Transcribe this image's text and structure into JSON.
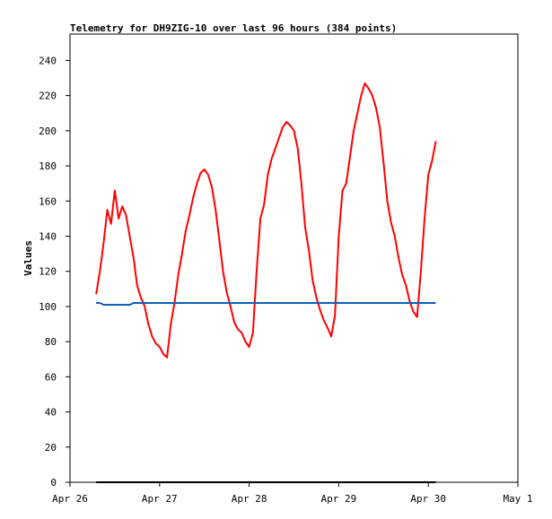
{
  "chart_data": {
    "type": "line",
    "title": "Telemetry for DH9ZIG-10 over last 96 hours (384 points)",
    "xlabel": "",
    "ylabel": "Values",
    "xlim": [
      "Apr 26",
      "May 1"
    ],
    "ylim": [
      0,
      255
    ],
    "x_ticks": [
      "Apr 26",
      "Apr 27",
      "Apr 28",
      "Apr 29",
      "Apr 30",
      "May 1"
    ],
    "y_ticks": [
      0,
      20,
      40,
      60,
      80,
      100,
      120,
      140,
      160,
      180,
      200,
      220,
      240
    ],
    "grid": false,
    "legend": "none",
    "series": [
      {
        "color": "#ff0000",
        "points": [
          [
            "Apr 26 07:00",
            107
          ],
          [
            "Apr 26 08:00",
            120
          ],
          [
            "Apr 26 09:00",
            136
          ],
          [
            "Apr 26 10:00",
            155
          ],
          [
            "Apr 26 11:00",
            147
          ],
          [
            "Apr 26 12:00",
            166
          ],
          [
            "Apr 26 13:00",
            150
          ],
          [
            "Apr 26 14:00",
            157
          ],
          [
            "Apr 26 15:00",
            152
          ],
          [
            "Apr 26 16:00",
            140
          ],
          [
            "Apr 26 17:00",
            128
          ],
          [
            "Apr 26 18:00",
            112
          ],
          [
            "Apr 26 19:00",
            105
          ],
          [
            "Apr 26 20:00",
            100
          ],
          [
            "Apr 26 21:00",
            90
          ],
          [
            "Apr 26 22:00",
            83
          ],
          [
            "Apr 26 23:00",
            79
          ],
          [
            "Apr 27 00:00",
            77
          ],
          [
            "Apr 27 01:00",
            73
          ],
          [
            "Apr 27 02:00",
            71
          ],
          [
            "Apr 27 03:00",
            90
          ],
          [
            "Apr 27 04:00",
            102
          ],
          [
            "Apr 27 05:00",
            118
          ],
          [
            "Apr 27 06:00",
            130
          ],
          [
            "Apr 27 07:00",
            143
          ],
          [
            "Apr 27 08:00",
            152
          ],
          [
            "Apr 27 09:00",
            162
          ],
          [
            "Apr 27 10:00",
            170
          ],
          [
            "Apr 27 11:00",
            176
          ],
          [
            "Apr 27 12:00",
            178
          ],
          [
            "Apr 27 13:00",
            175
          ],
          [
            "Apr 27 14:00",
            168
          ],
          [
            "Apr 27 15:00",
            155
          ],
          [
            "Apr 27 16:00",
            138
          ],
          [
            "Apr 27 17:00",
            120
          ],
          [
            "Apr 27 18:00",
            108
          ],
          [
            "Apr 27 19:00",
            100
          ],
          [
            "Apr 27 20:00",
            91
          ],
          [
            "Apr 27 21:00",
            87
          ],
          [
            "Apr 27 22:00",
            85
          ],
          [
            "Apr 27 23:00",
            80
          ],
          [
            "Apr 28 00:00",
            77
          ],
          [
            "Apr 28 01:00",
            85
          ],
          [
            "Apr 28 02:00",
            120
          ],
          [
            "Apr 28 03:00",
            150
          ],
          [
            "Apr 28 04:00",
            158
          ],
          [
            "Apr 28 05:00",
            175
          ],
          [
            "Apr 28 06:00",
            184
          ],
          [
            "Apr 28 07:00",
            190
          ],
          [
            "Apr 28 08:00",
            196
          ],
          [
            "Apr 28 09:00",
            202
          ],
          [
            "Apr 28 10:00",
            205
          ],
          [
            "Apr 28 11:00",
            203
          ],
          [
            "Apr 28 12:00",
            200
          ],
          [
            "Apr 28 13:00",
            190
          ],
          [
            "Apr 28 14:00",
            170
          ],
          [
            "Apr 28 15:00",
            145
          ],
          [
            "Apr 28 16:00",
            132
          ],
          [
            "Apr 28 17:00",
            115
          ],
          [
            "Apr 28 18:00",
            105
          ],
          [
            "Apr 28 19:00",
            98
          ],
          [
            "Apr 28 20:00",
            92
          ],
          [
            "Apr 28 21:00",
            88
          ],
          [
            "Apr 28 22:00",
            83
          ],
          [
            "Apr 28 23:00",
            95
          ],
          [
            "Apr 29 00:00",
            140
          ],
          [
            "Apr 29 01:00",
            166
          ],
          [
            "Apr 29 02:00",
            170
          ],
          [
            "Apr 29 03:00",
            185
          ],
          [
            "Apr 29 04:00",
            200
          ],
          [
            "Apr 29 05:00",
            210
          ],
          [
            "Apr 29 06:00",
            220
          ],
          [
            "Apr 29 07:00",
            227
          ],
          [
            "Apr 29 08:00",
            224
          ],
          [
            "Apr 29 09:00",
            220
          ],
          [
            "Apr 29 10:00",
            213
          ],
          [
            "Apr 29 11:00",
            202
          ],
          [
            "Apr 29 12:00",
            182
          ],
          [
            "Apr 29 13:00",
            160
          ],
          [
            "Apr 29 14:00",
            148
          ],
          [
            "Apr 29 15:00",
            140
          ],
          [
            "Apr 29 16:00",
            128
          ],
          [
            "Apr 29 17:00",
            118
          ],
          [
            "Apr 29 18:00",
            112
          ],
          [
            "Apr 29 19:00",
            103
          ],
          [
            "Apr 29 20:00",
            97
          ],
          [
            "Apr 29 21:00",
            94
          ],
          [
            "Apr 29 22:00",
            120
          ],
          [
            "Apr 29 23:00",
            150
          ],
          [
            "Apr 30 00:00",
            175
          ],
          [
            "Apr 30 01:00",
            183
          ],
          [
            "Apr 30 02:00",
            194
          ]
        ]
      },
      {
        "color": "#1060b0",
        "points": [
          [
            "Apr 26 07:00",
            102
          ],
          [
            "Apr 26 08:00",
            102
          ],
          [
            "Apr 26 09:00",
            101
          ],
          [
            "Apr 26 16:00",
            101
          ],
          [
            "Apr 26 17:00",
            102
          ],
          [
            "Apr 30 02:00",
            102
          ]
        ]
      },
      {
        "color": "#000000",
        "points": [
          [
            "Apr 26 07:00",
            0
          ],
          [
            "Apr 30 02:00",
            0
          ]
        ]
      }
    ]
  }
}
